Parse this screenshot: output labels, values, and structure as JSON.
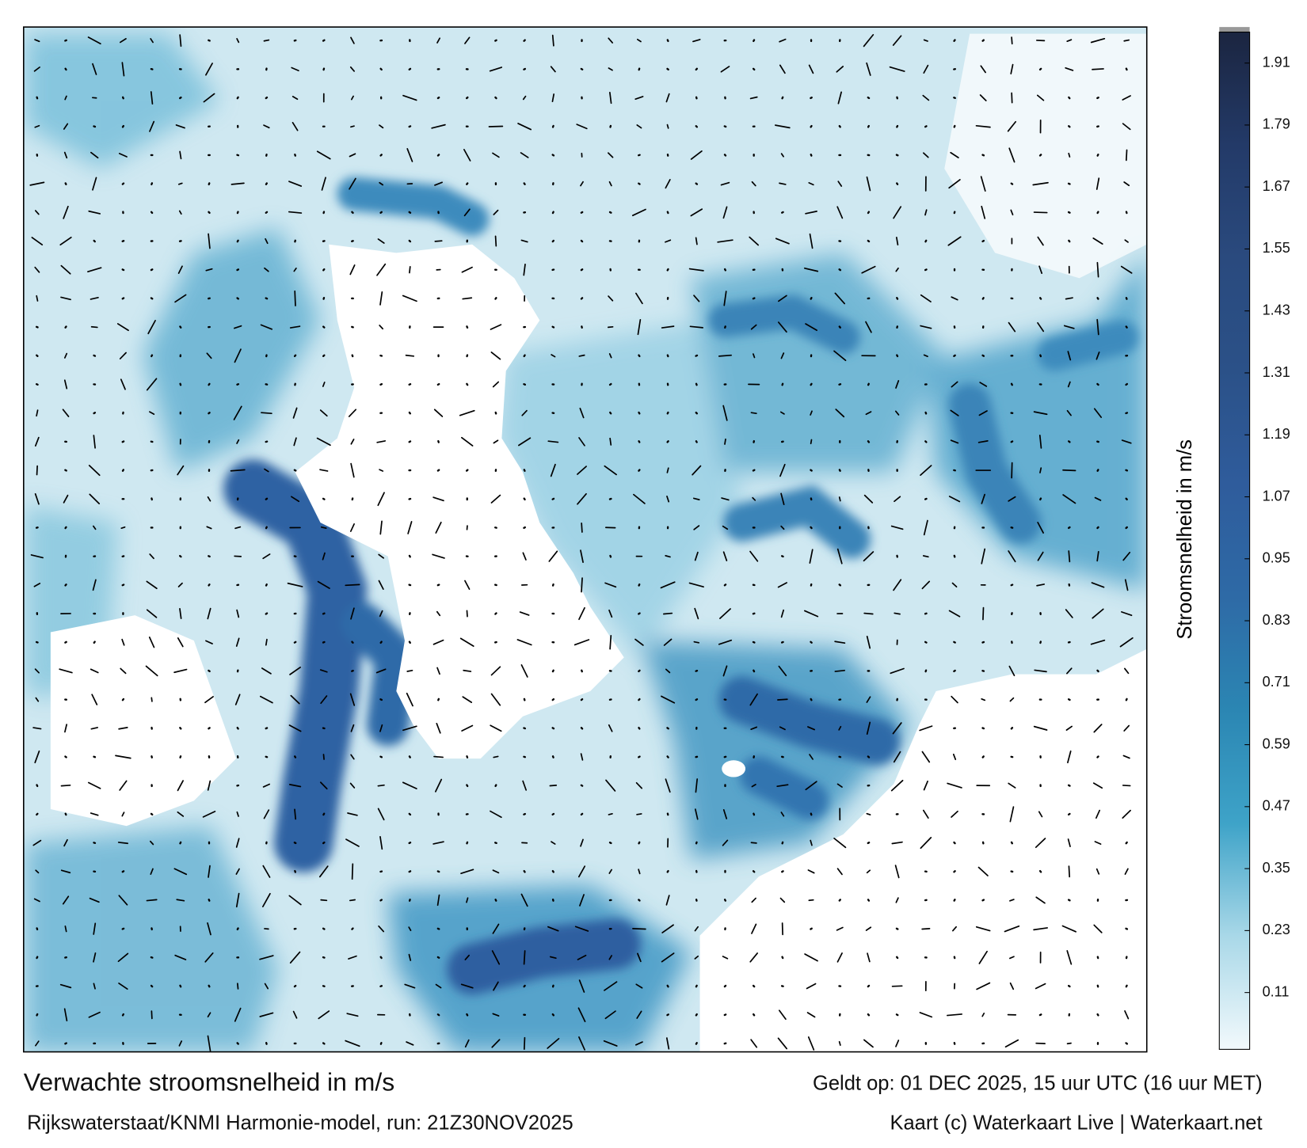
{
  "title": "Verwachte stroomsnelheid in m/s",
  "valid_time": "Geldt op: 01 DEC 2025, 15 uur UTC (16 uur MET)",
  "source": "Rijkswaterstaat/KNMI Harmonie-model, run: 21Z30NOV2025",
  "credit": "Kaart (c) Waterkaart Live | Waterkaart.net",
  "colorbar": {
    "label": "Stroomsnelheid in m/s",
    "lim": [
      0,
      1.97
    ],
    "ticks": [
      0.11,
      0.23,
      0.35,
      0.47,
      0.59,
      0.71,
      0.83,
      0.95,
      1.07,
      1.19,
      1.31,
      1.43,
      1.55,
      1.67,
      1.79,
      1.91
    ],
    "colors": [
      "#f2f9fc",
      "#a9d8e8",
      "#3ea3c8",
      "#2b86b3",
      "#2e6aa6",
      "#2f5c9c",
      "#2b5188",
      "#2a4a7e",
      "#233a68",
      "#1b2540"
    ]
  }
}
